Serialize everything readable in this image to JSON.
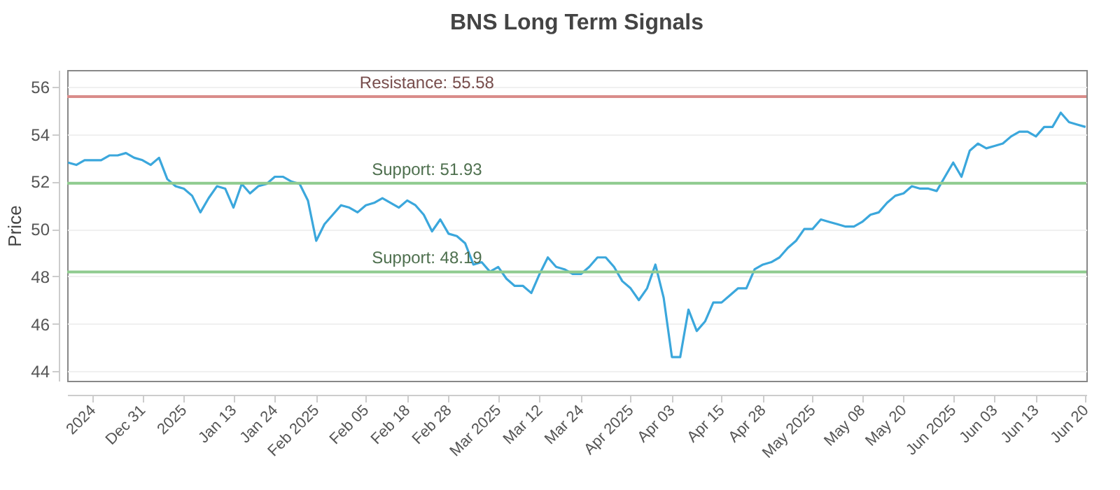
{
  "chart_data": {
    "type": "line",
    "title": "BNS Long Term Signals",
    "ylabel": "Price",
    "categories": [
      null,
      null,
      null,
      "2024",
      null,
      null,
      null,
      null,
      null,
      "Dec 31",
      null,
      null,
      null,
      null,
      "2025",
      null,
      null,
      null,
      null,
      null,
      "Jan 13",
      null,
      null,
      null,
      null,
      "Jan 24",
      null,
      null,
      null,
      null,
      "Feb 2025",
      null,
      null,
      null,
      null,
      null,
      "Feb 05",
      null,
      null,
      null,
      null,
      "Feb 18",
      null,
      null,
      null,
      null,
      "Feb 28",
      null,
      null,
      null,
      null,
      null,
      "Mar 2025",
      null,
      null,
      null,
      null,
      "Mar 12",
      null,
      null,
      null,
      null,
      "Mar 24",
      null,
      null,
      null,
      null,
      null,
      "Apr 2025",
      null,
      null,
      null,
      null,
      "Apr 03",
      null,
      null,
      null,
      null,
      null,
      "Apr 15",
      null,
      null,
      null,
      null,
      "Apr 28",
      null,
      null,
      null,
      null,
      null,
      "May 2025",
      null,
      null,
      null,
      null,
      null,
      "May 08",
      null,
      null,
      null,
      null,
      "May 20",
      null,
      null,
      null,
      null,
      null,
      "Jun 2025",
      null,
      null,
      null,
      null,
      "Jun 03",
      null,
      null,
      null,
      null,
      "Jun 13",
      null,
      null,
      null,
      null,
      null,
      "Jun 20"
    ],
    "series": [
      {
        "color": "#3ba7dc",
        "values": [
          52.8,
          52.7,
          52.9,
          52.9,
          52.9,
          53.1,
          53.1,
          53.2,
          53.0,
          52.9,
          52.7,
          53.0,
          52.1,
          51.8,
          51.7,
          51.4,
          50.7,
          51.3,
          51.8,
          51.7,
          50.9,
          51.9,
          51.5,
          51.8,
          51.9,
          52.2,
          52.2,
          52.0,
          51.9,
          51.2,
          49.5,
          50.2,
          50.6,
          51.0,
          50.9,
          50.7,
          51.0,
          51.1,
          51.3,
          51.1,
          50.9,
          51.2,
          51.0,
          50.6,
          49.9,
          50.4,
          49.8,
          49.7,
          49.4,
          48.5,
          48.6,
          48.2,
          48.4,
          47.9,
          47.6,
          47.6,
          47.3,
          48.1,
          48.8,
          48.4,
          48.3,
          48.1,
          48.1,
          48.4,
          48.8,
          48.8,
          48.4,
          47.8,
          47.5,
          47.0,
          47.5,
          48.5,
          47.1,
          44.6,
          44.6,
          46.6,
          45.7,
          46.1,
          46.9,
          46.9,
          47.2,
          47.5,
          47.5,
          48.3,
          48.5,
          48.6,
          48.8,
          49.2,
          49.5,
          50.0,
          50.0,
          50.4,
          50.3,
          50.2,
          50.1,
          50.1,
          50.3,
          50.6,
          50.7,
          51.1,
          51.4,
          51.5,
          51.8,
          51.7,
          51.7,
          51.6,
          52.2,
          52.8,
          52.2,
          53.3,
          53.6,
          53.4,
          53.5,
          53.6,
          53.9,
          54.1,
          54.1,
          53.9,
          54.3,
          54.3,
          54.9,
          54.5,
          54.4,
          54.3
        ]
      }
    ],
    "ylim": [
      43.6,
      56.7
    ],
    "yticks": [
      44,
      46,
      48,
      50,
      52,
      54,
      56
    ],
    "grid": "y",
    "ref_lines": [
      {
        "axis": "y",
        "value": 55.58,
        "label": "Resistance: 55.58",
        "color": "#d98c8a"
      },
      {
        "axis": "y",
        "value": 51.93,
        "label": "Support: 51.93",
        "color": "#8fcb8f"
      },
      {
        "axis": "y",
        "value": 48.19,
        "label": "Support: 48.19",
        "color": "#8fcb8f"
      }
    ]
  }
}
